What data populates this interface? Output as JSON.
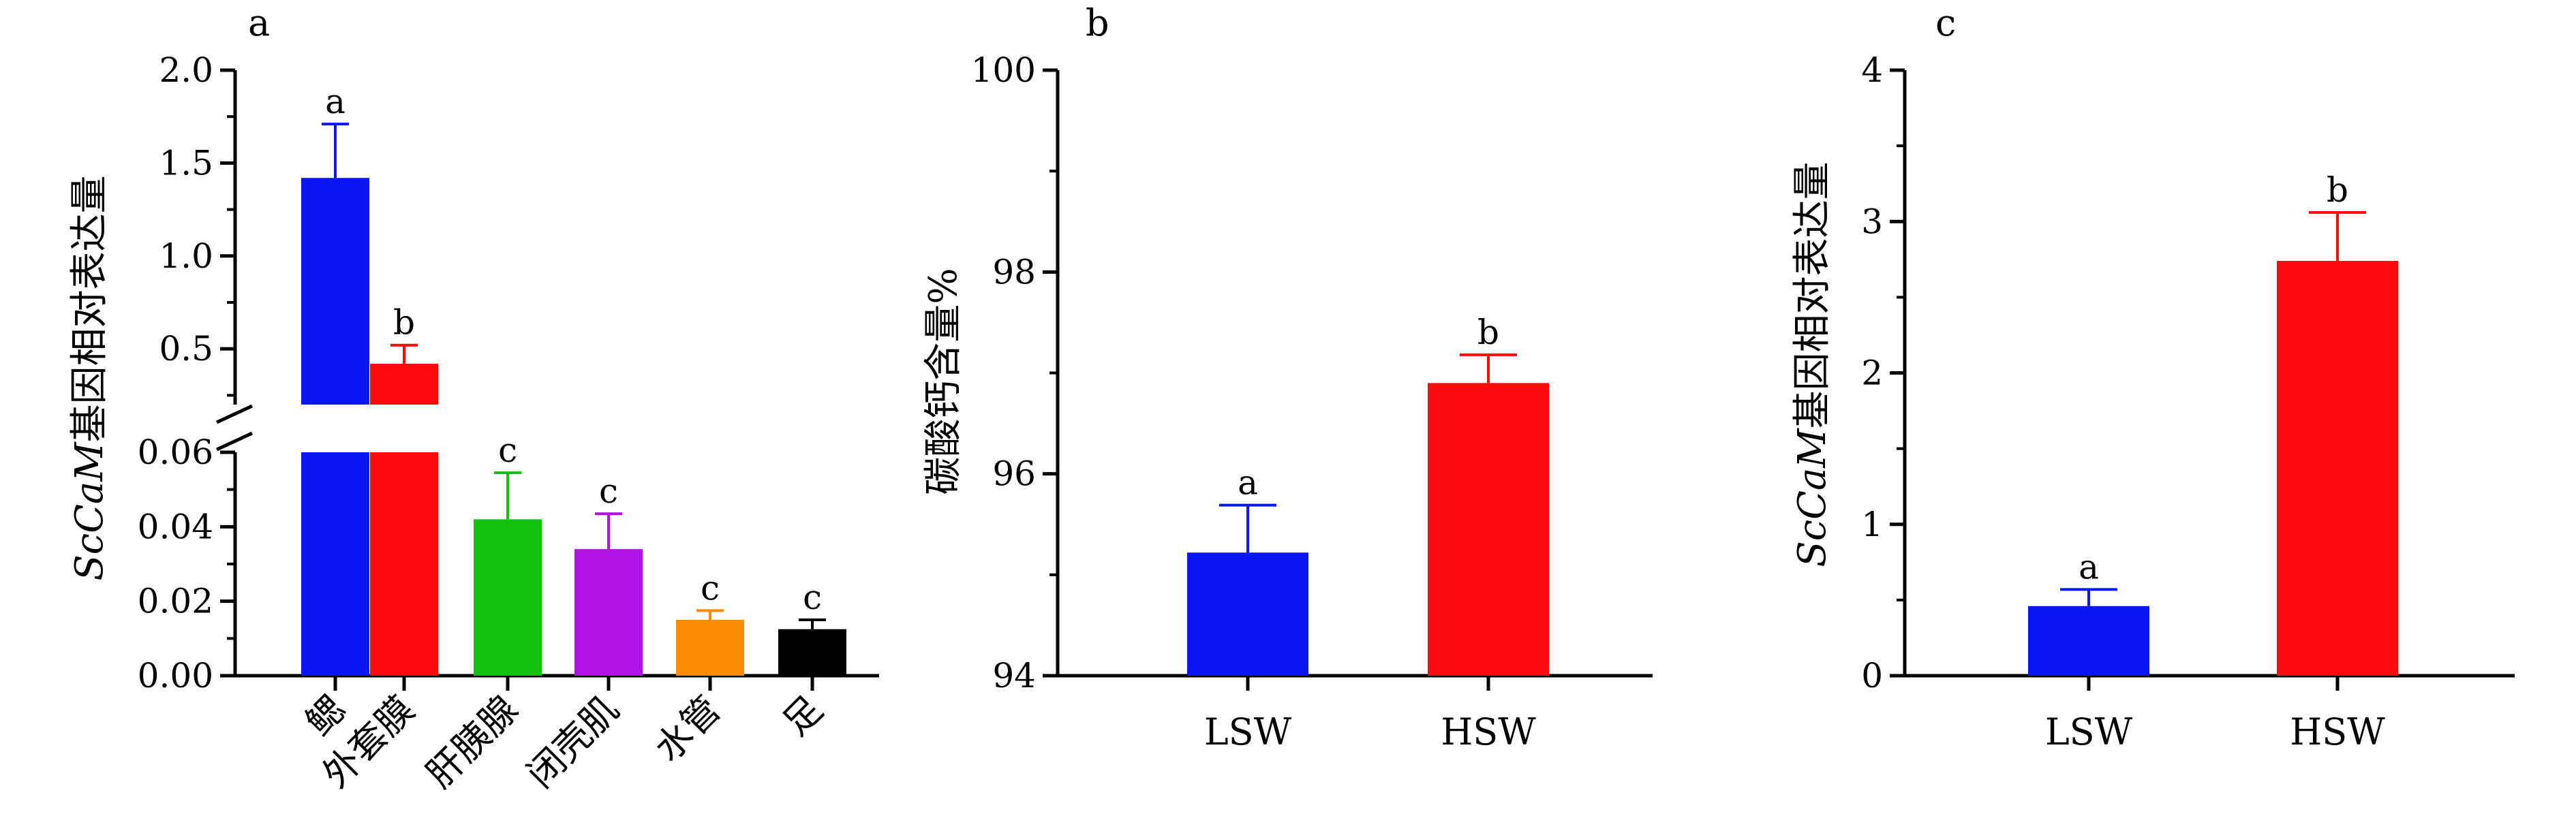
{
  "colors": {
    "blue": "#0b17f2",
    "red": "#fb0b0b",
    "green": "#10c20b",
    "purple": "#b112e6",
    "orange": "#fb8a05",
    "black": "#000000"
  },
  "chart_data": [
    {
      "panel": "a",
      "type": "bar",
      "ylabel_prefix": "ScCaM",
      "ylabel_suffix": "基因相对表达量",
      "categories": [
        "鳃",
        "外套膜",
        "肝胰腺",
        "闭壳肌",
        "水管",
        "足"
      ],
      "values": [
        1.42,
        0.42,
        0.042,
        0.034,
        0.015,
        0.0125
      ],
      "errors": [
        0.29,
        0.1,
        0.0125,
        0.0095,
        0.0025,
        0.0025
      ],
      "significance": [
        "a",
        "b",
        "c",
        "c",
        "c",
        "c"
      ],
      "bar_colors": [
        "blue",
        "red",
        "green",
        "purple",
        "orange",
        "black"
      ],
      "y_axis_break": {
        "lower_range": [
          0,
          0.06
        ],
        "upper_range": [
          0.2,
          2.0
        ]
      },
      "yticks_lower": [
        "0.00",
        "0.02",
        "0.04",
        "0.06"
      ],
      "yticks_upper": [
        "0.5",
        "1.0",
        "1.5",
        "2.0"
      ]
    },
    {
      "panel": "b",
      "type": "bar",
      "ylabel": "碳酸钙含量%",
      "categories": [
        "LSW",
        "HSW"
      ],
      "values": [
        95.22,
        96.9
      ],
      "errors": [
        0.47,
        0.28
      ],
      "significance": [
        "a",
        "b"
      ],
      "bar_colors": [
        "blue",
        "red"
      ],
      "ylim": [
        94,
        100
      ],
      "yticks": [
        "94",
        "96",
        "98",
        "100"
      ]
    },
    {
      "panel": "c",
      "type": "bar",
      "ylabel_prefix": "ScCaM",
      "ylabel_suffix": "基因相对表达量",
      "categories": [
        "LSW",
        "HSW"
      ],
      "values": [
        0.46,
        2.74
      ],
      "errors": [
        0.11,
        0.32
      ],
      "significance": [
        "a",
        "b"
      ],
      "bar_colors": [
        "blue",
        "red"
      ],
      "ylim": [
        0,
        4
      ],
      "yticks": [
        "0",
        "1",
        "2",
        "3",
        "4"
      ]
    }
  ]
}
